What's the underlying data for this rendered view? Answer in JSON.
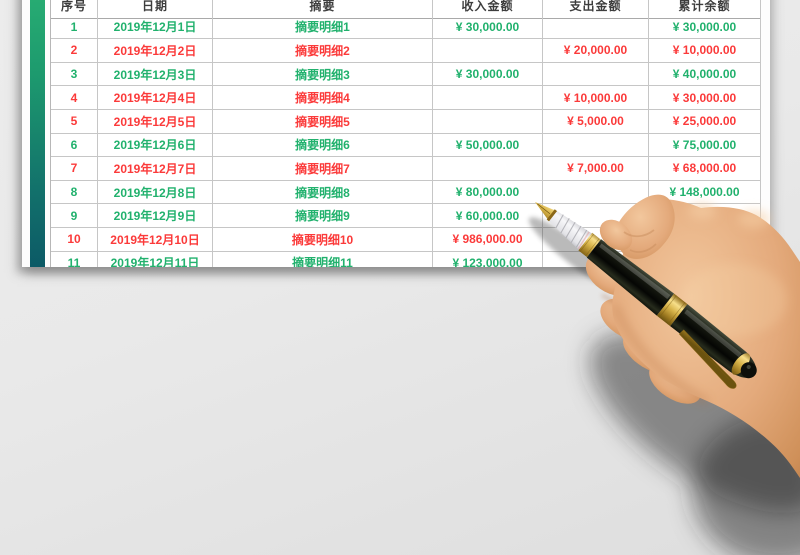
{
  "table": {
    "fields": [
      "no",
      "date",
      "summary",
      "income",
      "expense",
      "balance"
    ],
    "headers": [
      "序号",
      "日期",
      "摘要",
      "收入金额",
      "支出金额",
      "累计余额"
    ],
    "rows": [
      {
        "no": "1",
        "date": "2019年12月1日",
        "summary": "摘要明细1",
        "income": "¥ 30,000.00",
        "expense": "",
        "balance": "¥ 30,000.00",
        "type": "income"
      },
      {
        "no": "2",
        "date": "2019年12月2日",
        "summary": "摘要明细2",
        "income": "",
        "expense": "¥ 20,000.00",
        "balance": "¥ 10,000.00",
        "type": "expense"
      },
      {
        "no": "3",
        "date": "2019年12月3日",
        "summary": "摘要明细3",
        "income": "¥ 30,000.00",
        "expense": "",
        "balance": "¥ 40,000.00",
        "type": "income"
      },
      {
        "no": "4",
        "date": "2019年12月4日",
        "summary": "摘要明细4",
        "income": "",
        "expense": "¥ 10,000.00",
        "balance": "¥ 30,000.00",
        "type": "expense"
      },
      {
        "no": "5",
        "date": "2019年12月5日",
        "summary": "摘要明细5",
        "income": "",
        "expense": "¥ 5,000.00",
        "balance": "¥ 25,000.00",
        "type": "expense"
      },
      {
        "no": "6",
        "date": "2019年12月6日",
        "summary": "摘要明细6",
        "income": "¥ 50,000.00",
        "expense": "",
        "balance": "¥ 75,000.00",
        "type": "income"
      },
      {
        "no": "7",
        "date": "2019年12月7日",
        "summary": "摘要明细7",
        "income": "",
        "expense": "¥ 7,000.00",
        "balance": "¥ 68,000.00",
        "type": "expense"
      },
      {
        "no": "8",
        "date": "2019年12月8日",
        "summary": "摘要明细8",
        "income": "¥ 80,000.00",
        "expense": "",
        "balance": "¥ 148,000.00",
        "type": "income"
      },
      {
        "no": "9",
        "date": "2019年12月9日",
        "summary": "摘要明细9",
        "income": "¥ 60,000.00",
        "expense": "",
        "balance": "",
        "type": "income"
      },
      {
        "no": "10",
        "date": "2019年12月10日",
        "summary": "摘要明细10",
        "income": "¥ 986,000.00",
        "expense": "",
        "balance": "",
        "type": "expense"
      },
      {
        "no": "11",
        "date": "2019年12月11日",
        "summary": "摘要明细11",
        "income": "¥ 123,000.00",
        "expense": "",
        "balance": "",
        "type": "income"
      }
    ]
  },
  "colors": {
    "income_text": "#21b16d",
    "expense_text": "#fb3a3a",
    "header_text": "#3d3d3d",
    "accent_bar_top": "#2bb274",
    "accent_bar_bottom": "#0c5a66",
    "sheet": "#fdfdfd",
    "backdrop": "#e9e9e9"
  },
  "overlay": {
    "photo": "hand-holding-fountain-pen"
  }
}
